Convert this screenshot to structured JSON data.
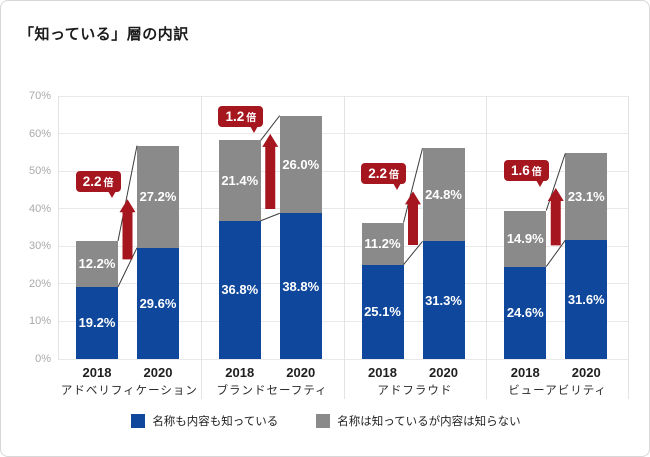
{
  "title": "「知っている」層の内訳",
  "legend": [
    {
      "label": "名称も内容も知っている",
      "color": "#0e479b"
    },
    {
      "label": "名称は知っているが内容は知らない",
      "color": "#8a8a8a"
    }
  ],
  "colors": {
    "bar_blue": "#0e479b",
    "bar_gray": "#8a8a8a",
    "accent_red": "#a5161f",
    "grid": "#e9e9e9",
    "separator": "#e3e3e3",
    "connector": "#3c3c3c"
  },
  "chart_data": {
    "type": "bar",
    "stacked": true,
    "unit": "%",
    "ylim": [
      0,
      70
    ],
    "ytick_step": 10,
    "grid": true,
    "legend_position": "bottom",
    "yticks": [
      "0%",
      "10%",
      "20%",
      "30%",
      "40%",
      "50%",
      "60%",
      "70%"
    ],
    "series_names": [
      "名称も内容も知っている",
      "名称は知っているが内容は知らない"
    ],
    "multiplier_suffix": "倍",
    "groups": [
      {
        "category": "アドベリフィケーション",
        "multiplier": "2.2",
        "bars": [
          {
            "year": "2018",
            "values": [
              19.2,
              12.2
            ],
            "labels": [
              "19.2%",
              "12.2%"
            ]
          },
          {
            "year": "2020",
            "values": [
              29.6,
              27.2
            ],
            "labels": [
              "29.6%",
              "27.2%"
            ]
          }
        ]
      },
      {
        "category": "ブランドセーフティ",
        "multiplier": "1.2",
        "bars": [
          {
            "year": "2018",
            "values": [
              36.8,
              21.4
            ],
            "labels": [
              "36.8%",
              "21.4%"
            ]
          },
          {
            "year": "2020",
            "values": [
              38.8,
              26.0
            ],
            "labels": [
              "38.8%",
              "26.0%"
            ]
          }
        ]
      },
      {
        "category": "アドフラウド",
        "multiplier": "2.2",
        "bars": [
          {
            "year": "2018",
            "values": [
              25.1,
              11.2
            ],
            "labels": [
              "25.1%",
              "11.2%"
            ]
          },
          {
            "year": "2020",
            "values": [
              31.3,
              24.8
            ],
            "labels": [
              "31.3%",
              "24.8%"
            ]
          }
        ]
      },
      {
        "category": "ビューアビリティ",
        "multiplier": "1.6",
        "bars": [
          {
            "year": "2018",
            "values": [
              24.6,
              14.9
            ],
            "labels": [
              "24.6%",
              "14.9%"
            ]
          },
          {
            "year": "2020",
            "values": [
              31.6,
              23.1
            ],
            "labels": [
              "31.6%",
              "23.1%"
            ]
          }
        ]
      }
    ]
  }
}
